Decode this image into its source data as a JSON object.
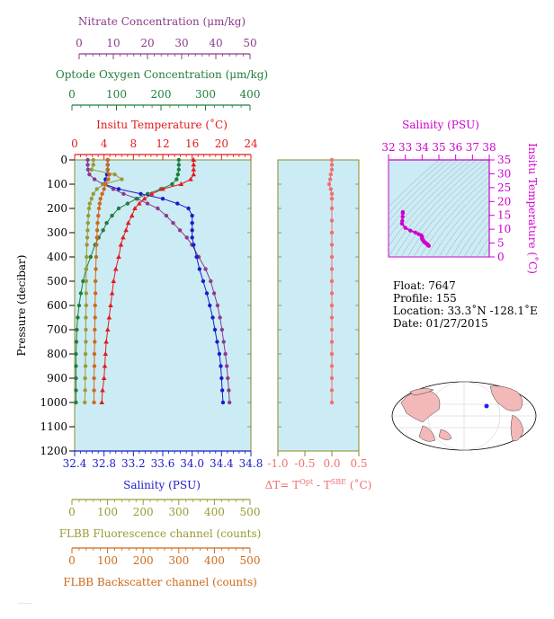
{
  "chart_data": {
    "type": "line",
    "pressure_axis": {
      "label": "Pressure (decibar)",
      "ticks": [
        0,
        100,
        200,
        300,
        400,
        500,
        600,
        700,
        800,
        900,
        1000,
        1100,
        1200
      ],
      "ylim": [
        0,
        1200
      ],
      "inverted": true
    },
    "axes": {
      "nitrate": {
        "label": "Nitrate Concentration (μm/kg)",
        "ticks": [
          0,
          10,
          20,
          30,
          40,
          50
        ],
        "xlim": [
          0,
          50
        ],
        "color": "#8b3c8b"
      },
      "oxygen": {
        "label": "Optode Oxygen Concentration (μm/kg)",
        "ticks": [
          0,
          100,
          200,
          300,
          400
        ],
        "xlim": [
          0,
          400
        ],
        "color": "#1f7f3a"
      },
      "temperature": {
        "label": "Insitu Temperature (˚C)",
        "ticks": [
          0,
          4,
          8,
          12,
          16,
          20,
          24
        ],
        "xlim": [
          0,
          24
        ],
        "color": "#e41a1c"
      },
      "salinity": {
        "label": "Salinity (PSU)",
        "ticks": [
          "32.4",
          "32.8",
          "33.2",
          "33.6",
          "34.0",
          "34.4",
          "34.8"
        ],
        "xlim": [
          32.4,
          34.8
        ],
        "color": "#1c1cc8"
      },
      "fluorescence": {
        "label": "FLBB Fluorescence channel (counts)",
        "ticks": [
          0,
          100,
          200,
          300,
          400,
          500
        ],
        "xlim": [
          0,
          500
        ],
        "color": "#9a9a33"
      },
      "backscatter": {
        "label": "FLBB Backscatter channel (counts)",
        "ticks": [
          0,
          100,
          200,
          300,
          400,
          500
        ],
        "xlim": [
          0,
          500
        ],
        "color": "#cc6a1a"
      },
      "delta_t": {
        "label_main": "ΔT= T",
        "label_sup1": "Opt",
        "label_mid": " - T",
        "label_sup2": "SBE",
        "label_unit": " (˚C)",
        "ticks": [
          "-1.0",
          "-0.5",
          "0.0",
          "0.5"
        ],
        "xlim": [
          -1.0,
          0.5
        ],
        "color": "#f07070"
      }
    },
    "series": [
      {
        "key": "nitrate",
        "color": "#8b3c8b",
        "marker": "circle",
        "points": [
          [
            2.5,
            0
          ],
          [
            2.5,
            20
          ],
          [
            2.6,
            40
          ],
          [
            3,
            60
          ],
          [
            4.5,
            80
          ],
          [
            7,
            100
          ],
          [
            10,
            120
          ],
          [
            13,
            140
          ],
          [
            17,
            160
          ],
          [
            20,
            180
          ],
          [
            23,
            200
          ],
          [
            25.5,
            230
          ],
          [
            27.5,
            260
          ],
          [
            29.5,
            290
          ],
          [
            31.5,
            320
          ],
          [
            33,
            350
          ],
          [
            35,
            400
          ],
          [
            37,
            450
          ],
          [
            38.5,
            500
          ],
          [
            39.5,
            550
          ],
          [
            40.5,
            600
          ],
          [
            41.2,
            650
          ],
          [
            41.8,
            700
          ],
          [
            42.3,
            750
          ],
          [
            42.8,
            800
          ],
          [
            43.2,
            850
          ],
          [
            43.5,
            900
          ],
          [
            43.8,
            950
          ],
          [
            44,
            1000
          ]
        ]
      },
      {
        "key": "oxygen",
        "color": "#1f7f3a",
        "marker": "circle",
        "points": [
          [
            240,
            0
          ],
          [
            240,
            20
          ],
          [
            240,
            40
          ],
          [
            238,
            60
          ],
          [
            235,
            80
          ],
          [
            225,
            100
          ],
          [
            200,
            120
          ],
          [
            170,
            140
          ],
          [
            145,
            160
          ],
          [
            125,
            180
          ],
          [
            105,
            200
          ],
          [
            90,
            230
          ],
          [
            78,
            260
          ],
          [
            70,
            290
          ],
          [
            60,
            320
          ],
          [
            52,
            350
          ],
          [
            42,
            400
          ],
          [
            32,
            450
          ],
          [
            25,
            500
          ],
          [
            20,
            550
          ],
          [
            16,
            600
          ],
          [
            13,
            650
          ],
          [
            11,
            700
          ],
          [
            10,
            750
          ],
          [
            9,
            800
          ],
          [
            9,
            850
          ],
          [
            9,
            900
          ],
          [
            9,
            950
          ],
          [
            9,
            1000
          ]
        ]
      },
      {
        "key": "temperature",
        "color": "#e41a1c",
        "marker": "triangle",
        "points": [
          [
            16.2,
            0
          ],
          [
            16.2,
            20
          ],
          [
            16.2,
            40
          ],
          [
            16.2,
            60
          ],
          [
            15.8,
            80
          ],
          [
            14.5,
            100
          ],
          [
            12,
            120
          ],
          [
            10.5,
            140
          ],
          [
            9.5,
            160
          ],
          [
            8.8,
            180
          ],
          [
            8.2,
            200
          ],
          [
            7.8,
            230
          ],
          [
            7.3,
            260
          ],
          [
            7,
            290
          ],
          [
            6.6,
            320
          ],
          [
            6.3,
            350
          ],
          [
            6,
            400
          ],
          [
            5.6,
            450
          ],
          [
            5.3,
            500
          ],
          [
            5.1,
            550
          ],
          [
            4.9,
            600
          ],
          [
            4.7,
            650
          ],
          [
            4.5,
            700
          ],
          [
            4.3,
            750
          ],
          [
            4.2,
            800
          ],
          [
            4.1,
            850
          ],
          [
            4,
            900
          ],
          [
            3.8,
            950
          ],
          [
            3.7,
            1000
          ]
        ]
      },
      {
        "key": "salinity",
        "color": "#1c1cc8",
        "marker": "circle",
        "points": [
          [
            32.85,
            0
          ],
          [
            32.85,
            20
          ],
          [
            32.85,
            40
          ],
          [
            32.84,
            60
          ],
          [
            32.82,
            80
          ],
          [
            32.8,
            100
          ],
          [
            33.0,
            120
          ],
          [
            33.3,
            140
          ],
          [
            33.6,
            160
          ],
          [
            33.8,
            180
          ],
          [
            33.95,
            200
          ],
          [
            34.0,
            230
          ],
          [
            34.0,
            260
          ],
          [
            34.0,
            290
          ],
          [
            34.0,
            320
          ],
          [
            34.02,
            350
          ],
          [
            34.06,
            400
          ],
          [
            34.1,
            450
          ],
          [
            34.15,
            500
          ],
          [
            34.2,
            550
          ],
          [
            34.24,
            600
          ],
          [
            34.28,
            650
          ],
          [
            34.31,
            700
          ],
          [
            34.34,
            750
          ],
          [
            34.37,
            800
          ],
          [
            34.39,
            850
          ],
          [
            34.4,
            900
          ],
          [
            34.41,
            950
          ],
          [
            34.42,
            1000
          ]
        ]
      },
      {
        "key": "fluorescence",
        "color": "#9a9a33",
        "marker": "circle",
        "points": [
          [
            60,
            0
          ],
          [
            60,
            20
          ],
          [
            55,
            40
          ],
          [
            120,
            60
          ],
          [
            140,
            80
          ],
          [
            90,
            100
          ],
          [
            70,
            120
          ],
          [
            60,
            140
          ],
          [
            55,
            160
          ],
          [
            50,
            180
          ],
          [
            48,
            200
          ],
          [
            46,
            230
          ],
          [
            45,
            260
          ],
          [
            44,
            290
          ],
          [
            43,
            320
          ],
          [
            42,
            350
          ],
          [
            41,
            400
          ],
          [
            40,
            450
          ],
          [
            40,
            500
          ],
          [
            40,
            550
          ],
          [
            40,
            600
          ],
          [
            39,
            650
          ],
          [
            39,
            700
          ],
          [
            39,
            750
          ],
          [
            38,
            800
          ],
          [
            38,
            850
          ],
          [
            37,
            900
          ],
          [
            37,
            950
          ],
          [
            36,
            1000
          ]
        ]
      },
      {
        "key": "backscatter",
        "color": "#cc6a1a",
        "marker": "circle",
        "points": [
          [
            100,
            0
          ],
          [
            100,
            20
          ],
          [
            100,
            40
          ],
          [
            105,
            60
          ],
          [
            102,
            80
          ],
          [
            95,
            100
          ],
          [
            90,
            120
          ],
          [
            85,
            140
          ],
          [
            80,
            160
          ],
          [
            78,
            180
          ],
          [
            76,
            200
          ],
          [
            74,
            230
          ],
          [
            72,
            260
          ],
          [
            71,
            290
          ],
          [
            70,
            320
          ],
          [
            69,
            350
          ],
          [
            68,
            400
          ],
          [
            67,
            450
          ],
          [
            66,
            500
          ],
          [
            66,
            550
          ],
          [
            65,
            600
          ],
          [
            65,
            650
          ],
          [
            64,
            700
          ],
          [
            64,
            750
          ],
          [
            63,
            800
          ],
          [
            63,
            850
          ],
          [
            62,
            900
          ],
          [
            62,
            950
          ],
          [
            62,
            1000
          ]
        ]
      },
      {
        "key": "delta_t",
        "color": "#f07070",
        "marker": "circle",
        "points": [
          [
            0.0,
            0
          ],
          [
            0.0,
            20
          ],
          [
            0.0,
            40
          ],
          [
            -0.02,
            60
          ],
          [
            -0.03,
            80
          ],
          [
            -0.05,
            100
          ],
          [
            -0.02,
            120
          ],
          [
            0.0,
            140
          ],
          [
            0.0,
            160
          ],
          [
            0.0,
            200
          ],
          [
            0.0,
            250
          ],
          [
            0.0,
            300
          ],
          [
            0.0,
            350
          ],
          [
            0.0,
            400
          ],
          [
            0.0,
            450
          ],
          [
            0.0,
            500
          ],
          [
            0.0,
            550
          ],
          [
            0.0,
            600
          ],
          [
            0.0,
            650
          ],
          [
            0.0,
            700
          ],
          [
            0.0,
            750
          ],
          [
            0.0,
            800
          ],
          [
            0.0,
            850
          ],
          [
            0.0,
            900
          ],
          [
            0.0,
            950
          ],
          [
            0.0,
            1000
          ]
        ]
      }
    ],
    "ts_diagram": {
      "title": "Salinity (PSU)",
      "x_ticks": [
        "32",
        "33",
        "34",
        "35",
        "36",
        "37",
        "38"
      ],
      "xlim": [
        32,
        38
      ],
      "y_label": "Insitu Temperature (˚C)",
      "y_ticks": [
        "0",
        "5",
        "10",
        "15",
        "20",
        "25",
        "30",
        "35"
      ],
      "ylim": [
        0,
        35
      ],
      "points": [
        [
          32.85,
          16.2
        ],
        [
          32.85,
          15.8
        ],
        [
          32.84,
          14.5
        ],
        [
          32.82,
          13
        ],
        [
          32.8,
          12
        ],
        [
          33.0,
          10.5
        ],
        [
          33.3,
          9.5
        ],
        [
          33.6,
          8.8
        ],
        [
          33.8,
          8.2
        ],
        [
          33.95,
          7.8
        ],
        [
          34.0,
          7.3
        ],
        [
          34.0,
          7
        ],
        [
          34.0,
          6.6
        ],
        [
          34.02,
          6.3
        ],
        [
          34.06,
          6
        ],
        [
          34.1,
          5.6
        ],
        [
          34.15,
          5.3
        ],
        [
          34.2,
          5.1
        ],
        [
          34.24,
          4.9
        ],
        [
          34.28,
          4.7
        ],
        [
          34.31,
          4.5
        ],
        [
          34.34,
          4.3
        ],
        [
          34.37,
          4.2
        ],
        [
          34.4,
          4
        ]
      ],
      "color": "#d000d0"
    }
  },
  "info": {
    "float": "Float:  7647",
    "profile": "Profile:  155",
    "location": "Location:  33.3˚N  -128.1˚E",
    "date": "Date:  01/27/2015"
  },
  "map": {
    "marker_color": "#2020ff",
    "ocean_color": "#ffffff",
    "land_color": "#f3b8b8"
  },
  "colors": {
    "panel_bg": "#ccecf5",
    "frame": "#8a8a2a"
  }
}
